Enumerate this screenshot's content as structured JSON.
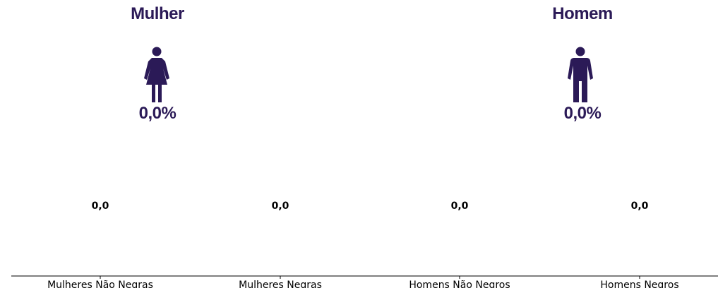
{
  "summary": {
    "women": {
      "title": "Mulher",
      "percent": "0,0%",
      "icon": "woman-icon"
    },
    "men": {
      "title": "Homem",
      "percent": "0,0%",
      "icon": "man-icon"
    },
    "color": "#2b1a57"
  },
  "chart_data": {
    "type": "bar",
    "categories": [
      "Mulheres Não Negras",
      "Mulheres Negras",
      "Homens Não Negros",
      "Homens Negros"
    ],
    "values": [
      0.0,
      0.0,
      0.0,
      0.0
    ],
    "data_labels": [
      "0,0",
      "0,0",
      "0,0",
      "0,0"
    ],
    "title": "",
    "xlabel": "",
    "ylabel": "",
    "grid": false,
    "legend": "none"
  }
}
